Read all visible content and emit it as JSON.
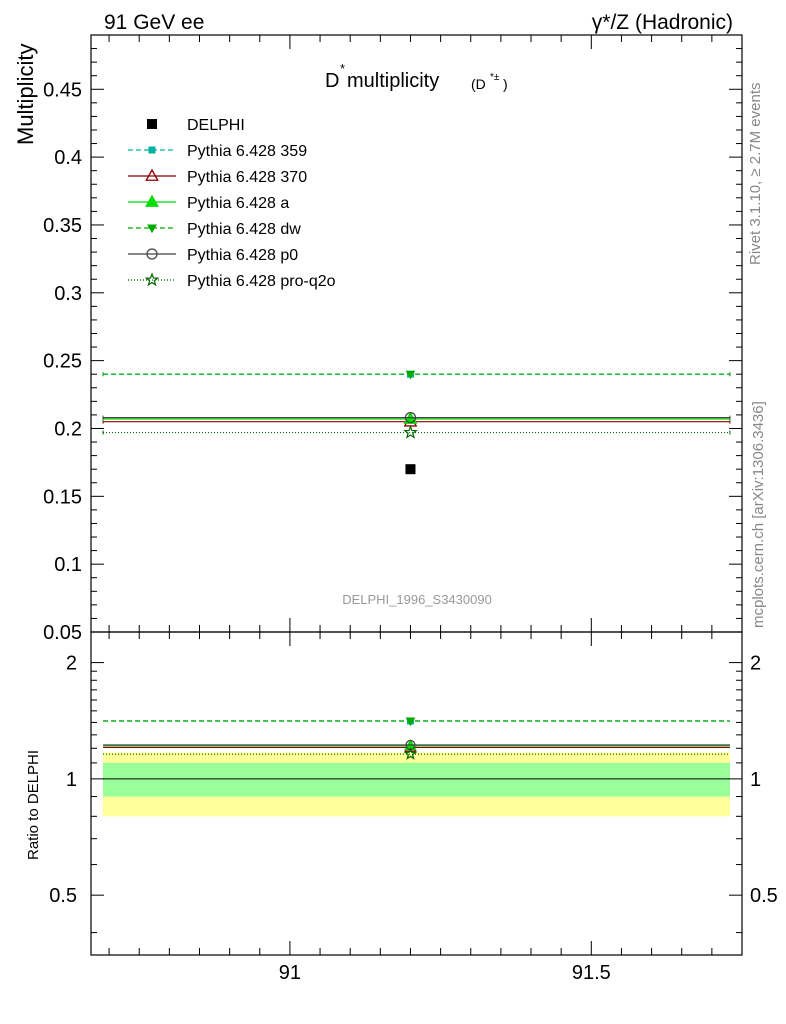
{
  "header": {
    "left": "91 GeV ee",
    "right": "γ*/Z (Hadronic)"
  },
  "side_labels": {
    "rivet": "Rivet 3.1.10, ≥ 2.7M events",
    "mcplots": "mcplots.cern.ch [arXiv:1306.3436]"
  },
  "chart_data": [
    {
      "type": "scatter",
      "title_main": "D",
      "title_sup": "*",
      "title_rest": " multiplicity",
      "title_paren": "(D",
      "title_paren_sup": "*±",
      "title_paren_end": ")",
      "ylabel": "Multiplicity",
      "xlim": [
        90.67,
        91.75
      ],
      "ylim": [
        0.05,
        0.49
      ],
      "yticks": [
        0.05,
        0.1,
        0.15,
        0.2,
        0.25,
        0.3,
        0.35,
        0.4,
        0.45
      ],
      "ytick_labels": [
        "0.05",
        "0.1",
        "0.15",
        "0.2",
        "0.25",
        "0.3",
        "0.35",
        "0.4",
        "0.45"
      ],
      "analysis_label": "DELPHI_1996_S3430090",
      "x_center": 91.2,
      "x_range": [
        90.69,
        91.73
      ],
      "data": {
        "name": "DELPHI",
        "x": 91.2,
        "y": 0.17
      },
      "series": [
        {
          "name": "Pythia 6.428 359",
          "y": 0.24,
          "color": "#00b39e",
          "dash": "5,3",
          "marker": "square"
        },
        {
          "name": "Pythia 6.428 370",
          "y": 0.205,
          "color": "#8b0000",
          "dash": "",
          "marker": "triangle-open"
        },
        {
          "name": "Pythia 6.428 a",
          "y": 0.207,
          "color": "#00dd00",
          "dash": "",
          "marker": "triangle"
        },
        {
          "name": "Pythia 6.428 dw",
          "y": 0.24,
          "color": "#00aa00",
          "dash": "5,3",
          "marker": "triangle-down"
        },
        {
          "name": "Pythia 6.428 p0",
          "y": 0.208,
          "color": "#444444",
          "dash": "",
          "marker": "circle-open"
        },
        {
          "name": "Pythia 6.428 pro-q2o",
          "y": 0.197,
          "color": "#006400",
          "dash": "1,2",
          "marker": "star-open"
        }
      ]
    },
    {
      "type": "scatter",
      "ylabel": "Ratio to DELPHI",
      "xlabel": "",
      "xlim": [
        90.67,
        91.75
      ],
      "ylim": [
        0.35,
        2.4
      ],
      "ylog": true,
      "yticks": [
        0.5,
        1,
        2
      ],
      "ytick_labels": [
        "0.5",
        "1",
        "2"
      ],
      "xticks": [
        91,
        91.5
      ],
      "xtick_labels": [
        "91",
        "91.5"
      ],
      "bands": [
        {
          "name": "yellow",
          "low": 0.8,
          "high": 1.17,
          "color": "#ffff99"
        },
        {
          "name": "green",
          "low": 0.9,
          "high": 1.1,
          "color": "#99ff99"
        }
      ],
      "ratios": [
        1.412,
        1.206,
        1.218,
        1.412,
        1.224,
        1.159
      ]
    }
  ]
}
